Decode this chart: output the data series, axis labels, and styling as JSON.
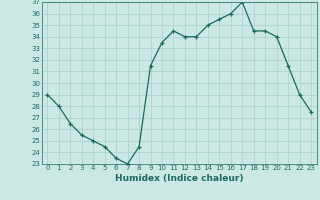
{
  "x": [
    0,
    1,
    2,
    3,
    4,
    5,
    6,
    7,
    8,
    9,
    10,
    11,
    12,
    13,
    14,
    15,
    16,
    17,
    18,
    19,
    20,
    21,
    22,
    23
  ],
  "y": [
    29.0,
    28.0,
    26.5,
    25.5,
    25.0,
    24.5,
    23.5,
    23.0,
    24.5,
    31.5,
    33.5,
    34.5,
    34.0,
    34.0,
    35.0,
    35.5,
    36.0,
    37.0,
    34.5,
    34.5,
    34.0,
    31.5,
    29.0,
    27.5
  ],
  "xlabel": "Humidex (Indice chaleur)",
  "ylim": [
    23,
    37
  ],
  "xlim": [
    -0.5,
    23.5
  ],
  "yticks": [
    23,
    24,
    25,
    26,
    27,
    28,
    29,
    30,
    31,
    32,
    33,
    34,
    35,
    36,
    37
  ],
  "xticks": [
    0,
    1,
    2,
    3,
    4,
    5,
    6,
    7,
    8,
    9,
    10,
    11,
    12,
    13,
    14,
    15,
    16,
    17,
    18,
    19,
    20,
    21,
    22,
    23
  ],
  "line_color": "#1a6b5a",
  "marker": "+",
  "bg_color": "#cce8e4",
  "grid_color": "#aacfcb",
  "label_color": "#1a6b5a",
  "tick_color": "#1a6b5a"
}
